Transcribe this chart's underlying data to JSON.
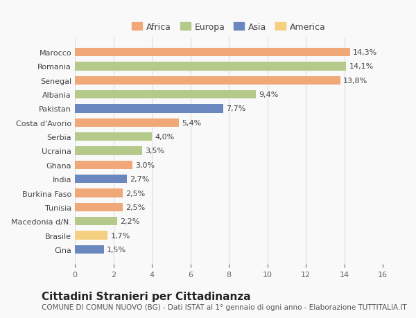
{
  "countries": [
    "Marocco",
    "Romania",
    "Senegal",
    "Albania",
    "Pakistan",
    "Costa d'Avorio",
    "Serbia",
    "Ucraina",
    "Ghana",
    "India",
    "Burkina Faso",
    "Tunisia",
    "Macedonia d/N.",
    "Brasile",
    "Cina"
  ],
  "values": [
    14.3,
    14.1,
    13.8,
    9.4,
    7.7,
    5.4,
    4.0,
    3.5,
    3.0,
    2.7,
    2.5,
    2.5,
    2.2,
    1.7,
    1.5
  ],
  "labels": [
    "14,3%",
    "14,1%",
    "13,8%",
    "9,4%",
    "7,7%",
    "5,4%",
    "4,0%",
    "3,5%",
    "3,0%",
    "2,7%",
    "2,5%",
    "2,5%",
    "2,2%",
    "1,7%",
    "1,5%"
  ],
  "continents": [
    "Africa",
    "Europa",
    "Africa",
    "Europa",
    "Asia",
    "Africa",
    "Europa",
    "Europa",
    "Africa",
    "Asia",
    "Africa",
    "Africa",
    "Europa",
    "America",
    "Asia"
  ],
  "continent_colors": {
    "Africa": "#F0A878",
    "Europa": "#B5C98A",
    "Asia": "#6B87C0",
    "America": "#F5D080"
  },
  "legend_order": [
    "Africa",
    "Europa",
    "Asia",
    "America"
  ],
  "title": "Cittadini Stranieri per Cittadinanza",
  "subtitle": "COMUNE DI COMUN NUOVO (BG) - Dati ISTAT al 1° gennaio di ogni anno - Elaborazione TUTTITALIA.IT",
  "xlim": [
    0,
    16
  ],
  "xticks": [
    0,
    2,
    4,
    6,
    8,
    10,
    12,
    14,
    16
  ],
  "background_color": "#f9f9f9",
  "grid_color": "#dddddd",
  "bar_height": 0.6,
  "title_fontsize": 11,
  "subtitle_fontsize": 7.5,
  "label_fontsize": 8,
  "tick_fontsize": 8,
  "legend_fontsize": 9
}
